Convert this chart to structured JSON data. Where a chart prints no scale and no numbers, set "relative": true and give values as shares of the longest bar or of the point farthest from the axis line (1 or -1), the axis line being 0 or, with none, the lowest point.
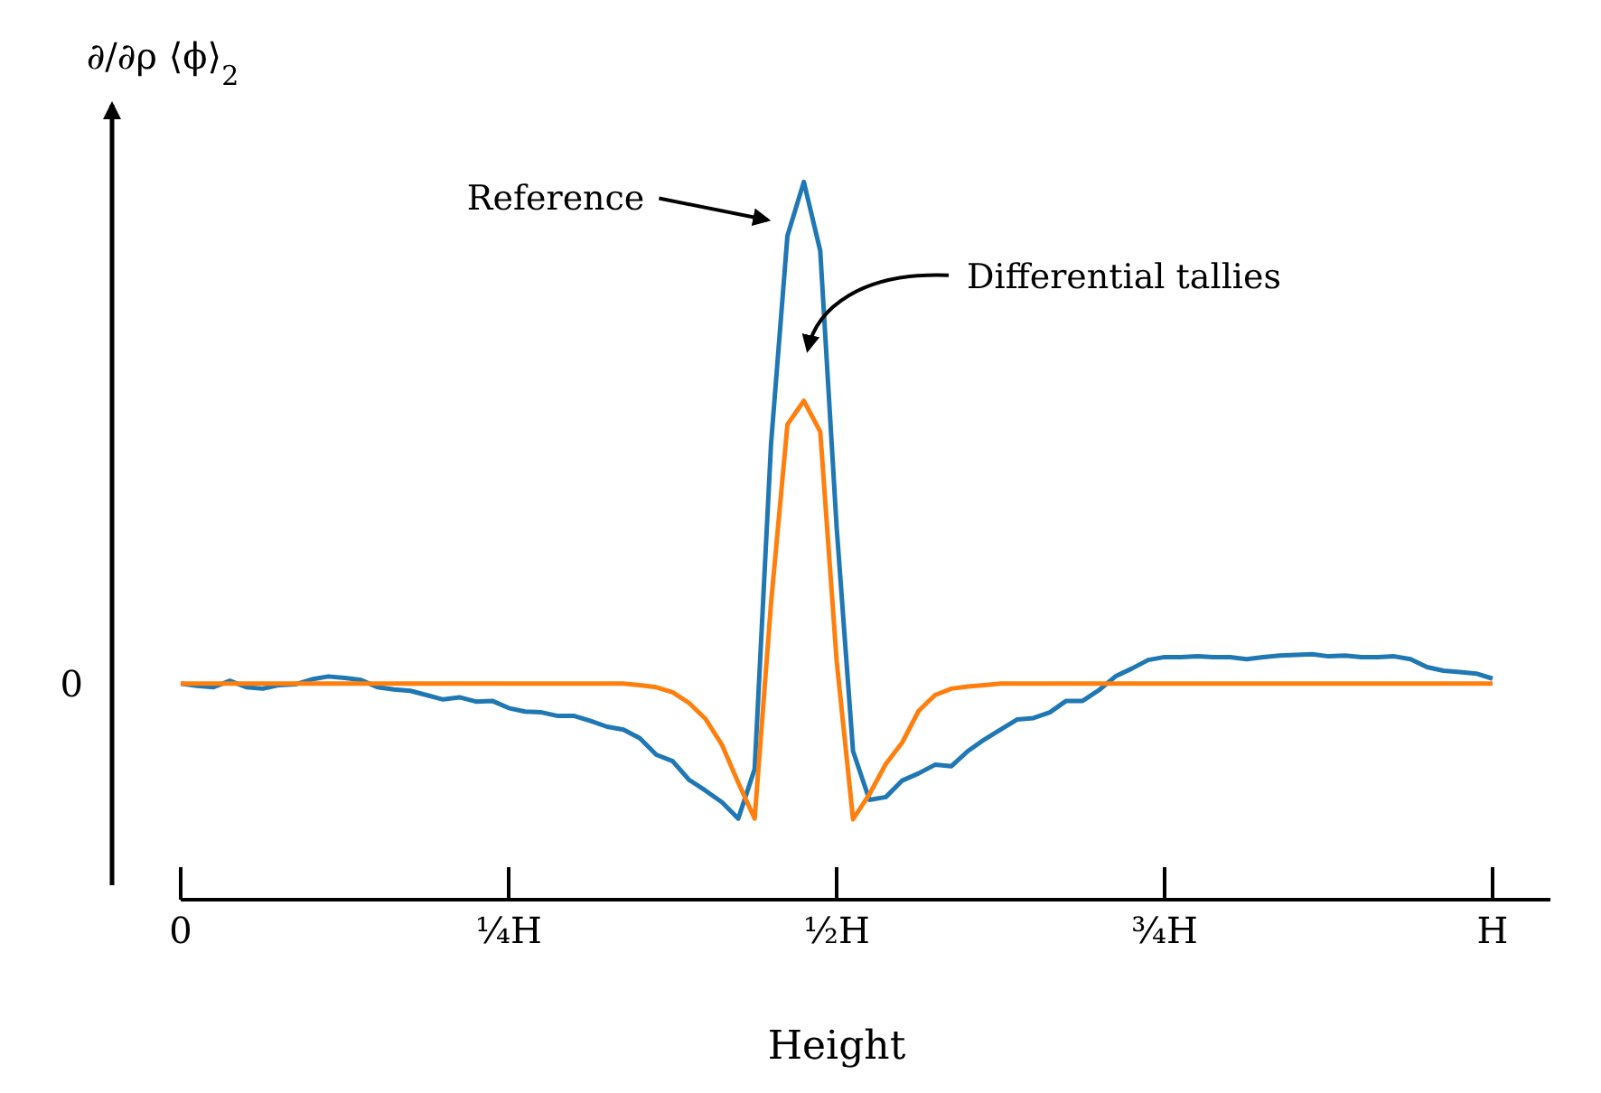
{
  "chart_data": {
    "type": "line",
    "relative": true,
    "xlabel": "Height",
    "ylabel": "∂/∂ρ ⟨ϕ⟩$_{2}$",
    "categories": [
      "0",
      null,
      null,
      null,
      null,
      null,
      null,
      null,
      null,
      null,
      null,
      null,
      null,
      null,
      null,
      null,
      null,
      null,
      null,
      null,
      "¼H",
      null,
      null,
      null,
      null,
      null,
      null,
      null,
      null,
      null,
      null,
      null,
      null,
      null,
      null,
      null,
      null,
      null,
      null,
      null,
      "½H",
      null,
      null,
      null,
      null,
      null,
      null,
      null,
      null,
      null,
      null,
      null,
      null,
      null,
      null,
      null,
      null,
      null,
      null,
      null,
      "¾H",
      null,
      null,
      null,
      null,
      null,
      null,
      null,
      null,
      null,
      null,
      null,
      null,
      null,
      null,
      null,
      null,
      null,
      null,
      null,
      "H"
    ],
    "annotations": [
      "0",
      "Reference",
      "Differential tallies"
    ],
    "series": [
      {
        "color": "#1f77b4",
        "values": [
          0.301,
          0.298,
          0.296,
          0.305,
          0.296,
          0.294,
          0.299,
          0.3,
          0.307,
          0.311,
          0.309,
          0.306,
          0.296,
          0.293,
          0.291,
          0.285,
          0.279,
          0.282,
          0.276,
          0.277,
          0.267,
          0.262,
          0.261,
          0.256,
          0.256,
          0.249,
          0.241,
          0.237,
          0.225,
          0.202,
          0.193,
          0.167,
          0.152,
          0.136,
          0.113,
          0.182,
          0.635,
          0.925,
          1,
          0.904,
          0.519,
          0.207,
          0.139,
          0.143,
          0.166,
          0.176,
          0.188,
          0.186,
          0.207,
          0.223,
          0.237,
          0.251,
          0.253,
          0.261,
          0.277,
          0.277,
          0.292,
          0.311,
          0.322,
          0.334,
          0.338,
          0.338,
          0.339,
          0.338,
          0.338,
          0.335,
          0.338,
          0.34,
          0.341,
          0.342,
          0.339,
          0.34,
          0.338,
          0.338,
          0.339,
          0.335,
          0.324,
          0.319,
          0.317,
          0.315,
          0.308
        ]
      },
      {
        "color": "#ff7f0e",
        "values": [
          0.301,
          0.301,
          0.301,
          0.301,
          0.301,
          0.301,
          0.301,
          0.301,
          0.301,
          0.301,
          0.301,
          0.301,
          0.301,
          0.301,
          0.301,
          0.301,
          0.301,
          0.301,
          0.301,
          0.301,
          0.301,
          0.301,
          0.301,
          0.301,
          0.301,
          0.301,
          0.301,
          0.301,
          0.299,
          0.296,
          0.289,
          0.274,
          0.252,
          0.216,
          0.163,
          0.113,
          0.413,
          0.662,
          0.695,
          0.652,
          0.333,
          0.112,
          0.147,
          0.189,
          0.219,
          0.263,
          0.285,
          0.294,
          0.297,
          0.299,
          0.301,
          0.301,
          0.301,
          0.301,
          0.301,
          0.301,
          0.301,
          0.301,
          0.301,
          0.301,
          0.301,
          0.301,
          0.301,
          0.301,
          0.301,
          0.301,
          0.301,
          0.301,
          0.301,
          0.301,
          0.301,
          0.301,
          0.301,
          0.301,
          0.301,
          0.301,
          0.301,
          0.301,
          0.301,
          0.301,
          0.301
        ]
      }
    ]
  }
}
